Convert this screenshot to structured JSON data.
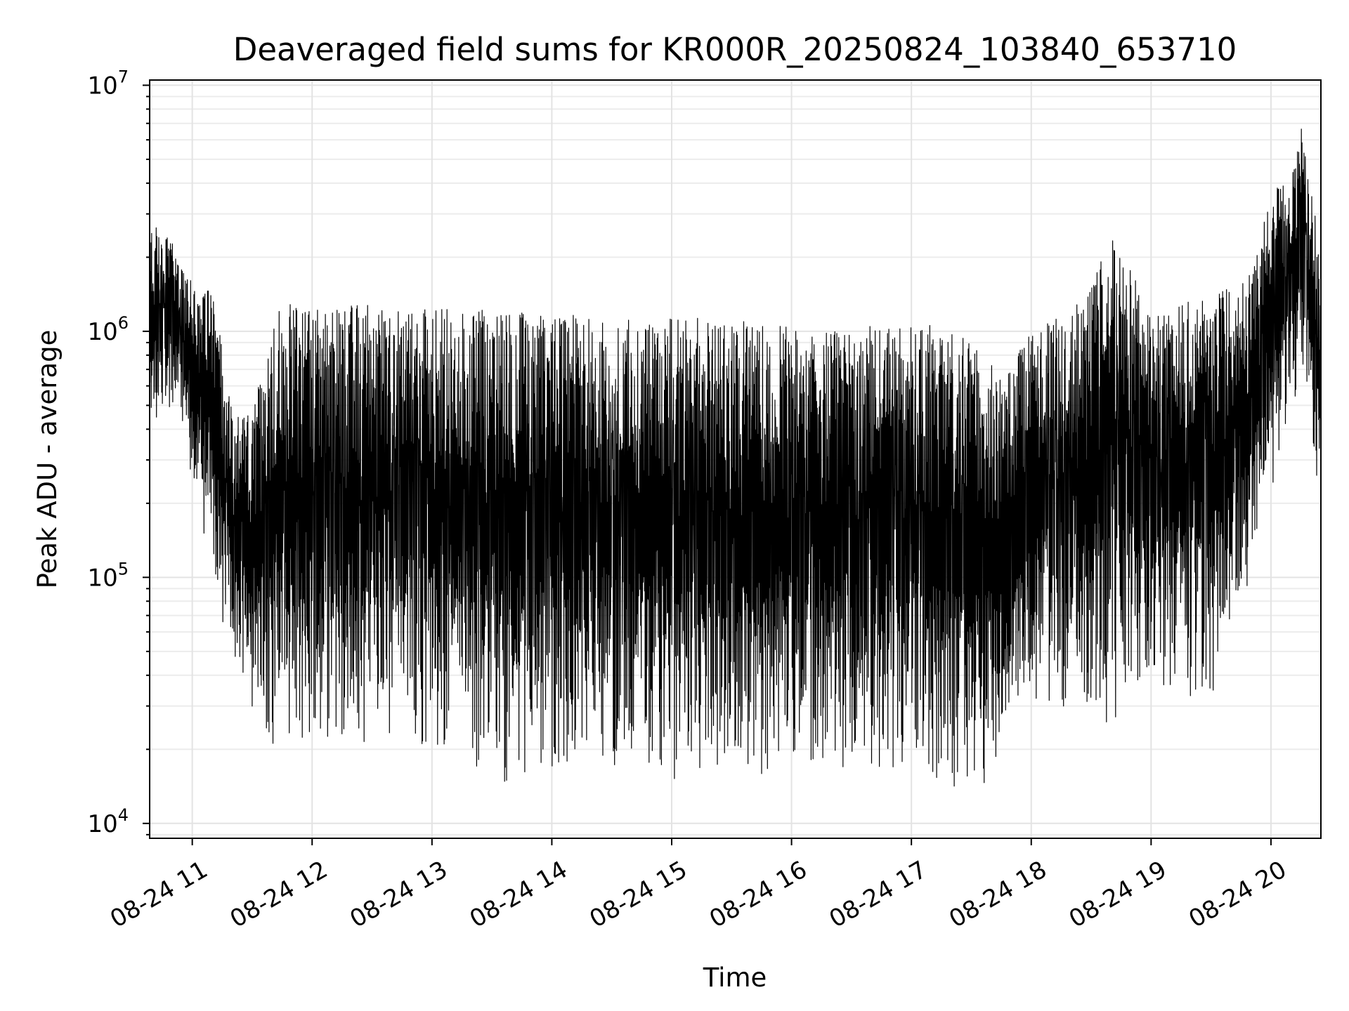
{
  "chart_data": {
    "type": "line",
    "title": "Deaveraged field sums for KR000R_20250824_103840_653710",
    "xlabel": "Time",
    "ylabel": "Peak ADU - average",
    "x_range": [
      "2025-08-24T10:38:40",
      "2025-08-24T20:25:00"
    ],
    "x_ticks": [
      {
        "value": "2025-08-24T11:00",
        "label": "08-24 11"
      },
      {
        "value": "2025-08-24T12:00",
        "label": "08-24 12"
      },
      {
        "value": "2025-08-24T13:00",
        "label": "08-24 13"
      },
      {
        "value": "2025-08-24T14:00",
        "label": "08-24 14"
      },
      {
        "value": "2025-08-24T15:00",
        "label": "08-24 15"
      },
      {
        "value": "2025-08-24T16:00",
        "label": "08-24 16"
      },
      {
        "value": "2025-08-24T17:00",
        "label": "08-24 17"
      },
      {
        "value": "2025-08-24T18:00",
        "label": "08-24 18"
      },
      {
        "value": "2025-08-24T19:00",
        "label": "08-24 19"
      },
      {
        "value": "2025-08-24T20:00",
        "label": "08-24 20"
      }
    ],
    "y_scale": "log",
    "ylim": [
      8700,
      10500000
    ],
    "y_ticks": [
      {
        "value": 10000,
        "base": "10",
        "exp": "4"
      },
      {
        "value": 100000,
        "base": "10",
        "exp": "5"
      },
      {
        "value": 1000000,
        "base": "10",
        "exp": "6"
      },
      {
        "value": 10000000,
        "base": "10",
        "exp": "7"
      }
    ],
    "grid": true,
    "line_color": "#000000",
    "envelope": [
      {
        "x": "2025-08-24T10:38:40",
        "low": 380000,
        "high": 2800000
      },
      {
        "x": "2025-08-24T10:50:00",
        "low": 500000,
        "high": 2300000
      },
      {
        "x": "2025-08-24T11:00:00",
        "low": 220000,
        "high": 1600000
      },
      {
        "x": "2025-08-24T11:10:00",
        "low": 110000,
        "high": 1450000
      },
      {
        "x": "2025-08-24T11:20:00",
        "low": 40000,
        "high": 500000
      },
      {
        "x": "2025-08-24T11:30:00",
        "low": 24000,
        "high": 450000
      },
      {
        "x": "2025-08-24T11:40:00",
        "low": 21000,
        "high": 1200000
      },
      {
        "x": "2025-08-24T11:50:00",
        "low": 22000,
        "high": 1300000
      },
      {
        "x": "2025-08-24T12:10:00",
        "low": 20000,
        "high": 1300000
      },
      {
        "x": "2025-08-24T13:00:00",
        "low": 20000,
        "high": 1250000
      },
      {
        "x": "2025-08-24T13:40:00",
        "low": 14000,
        "high": 1200000
      },
      {
        "x": "2025-08-24T14:20:00",
        "low": 18000,
        "high": 1150000
      },
      {
        "x": "2025-08-24T15:00:00",
        "low": 15000,
        "high": 1150000
      },
      {
        "x": "2025-08-24T15:40:00",
        "low": 15000,
        "high": 1100000
      },
      {
        "x": "2025-08-24T16:10:00",
        "low": 16000,
        "high": 1000000
      },
      {
        "x": "2025-08-24T16:40:00",
        "low": 17000,
        "high": 1050000
      },
      {
        "x": "2025-08-24T17:10:00",
        "low": 15000,
        "high": 1100000
      },
      {
        "x": "2025-08-24T17:30:00",
        "low": 13000,
        "high": 900000
      },
      {
        "x": "2025-08-24T17:45:00",
        "low": 16000,
        "high": 700000
      },
      {
        "x": "2025-08-24T18:00:00",
        "low": 30000,
        "high": 1000000
      },
      {
        "x": "2025-08-24T18:30:00",
        "low": 28000,
        "high": 1500000
      },
      {
        "x": "2025-08-24T18:40:00",
        "low": 24000,
        "high": 2600000
      },
      {
        "x": "2025-08-24T19:00:00",
        "low": 35000,
        "high": 1200000
      },
      {
        "x": "2025-08-24T19:30:00",
        "low": 30000,
        "high": 1400000
      },
      {
        "x": "2025-08-24T19:50:00",
        "low": 90000,
        "high": 1700000
      },
      {
        "x": "2025-08-24T20:00:00",
        "low": 200000,
        "high": 3800000
      },
      {
        "x": "2025-08-24T20:10:00",
        "low": 500000,
        "high": 4000000
      },
      {
        "x": "2025-08-24T20:15:00",
        "low": 600000,
        "high": 7800000
      },
      {
        "x": "2025-08-24T20:25:00",
        "low": 150000,
        "high": 2000000
      }
    ]
  }
}
